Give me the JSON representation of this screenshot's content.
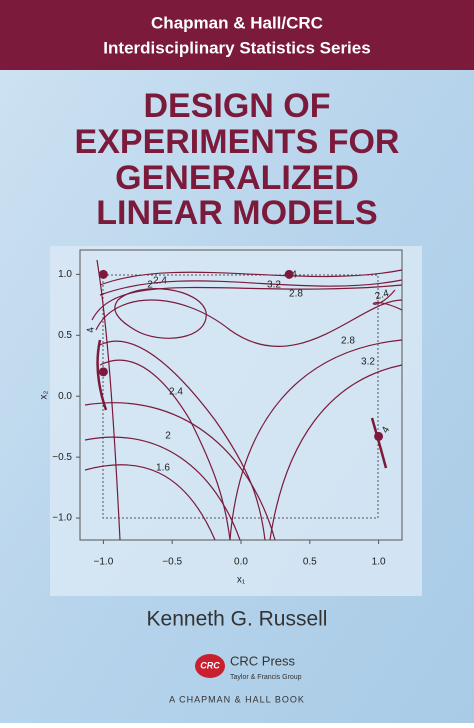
{
  "header": {
    "lines": [
      "Chapman & Hall/CRC",
      "Interdisciplinary Statistics Series"
    ]
  },
  "title": {
    "lines": [
      "DESIGN OF",
      "EXPERIMENTS FOR",
      "GENERALIZED",
      "LINEAR MODELS"
    ]
  },
  "chart_data": {
    "type": "contour",
    "xlabel": "x₁",
    "ylabel": "x₂",
    "xlim": [
      -1.17,
      1.17
    ],
    "ylim": [
      -1.18,
      1.2
    ],
    "xticks": [
      {
        "value": -1,
        "label": "−1.0"
      },
      {
        "value": -0.5,
        "label": "−0.5"
      },
      {
        "value": 0,
        "label": "0.0"
      },
      0.5,
      {
        "value": 1,
        "label": "1.0"
      }
    ],
    "yticks": [
      {
        "value": -1,
        "label": "−1.0"
      },
      {
        "value": -0.5,
        "label": "−0.5"
      },
      {
        "value": 0,
        "label": "0.0"
      },
      0.5,
      {
        "value": 1,
        "label": "1.0"
      }
    ],
    "contour_labels": [
      2.4,
      2,
      3.2,
      2.8,
      4,
      2.4,
      2.8,
      3.2,
      2.4,
      2,
      1.6,
      4,
      4
    ],
    "points": {
      "x": [
        -1,
        0.35,
        -1,
        1
      ],
      "y": [
        1,
        1,
        0.2,
        -0.33
      ]
    },
    "color": "#7b1a3a"
  },
  "author": "Kenneth G. Russell",
  "publisher": {
    "logo": "CRC",
    "name": "CRC Press",
    "group": "Taylor & Francis Group",
    "imprint": "A CHAPMAN & HALL BOOK"
  }
}
